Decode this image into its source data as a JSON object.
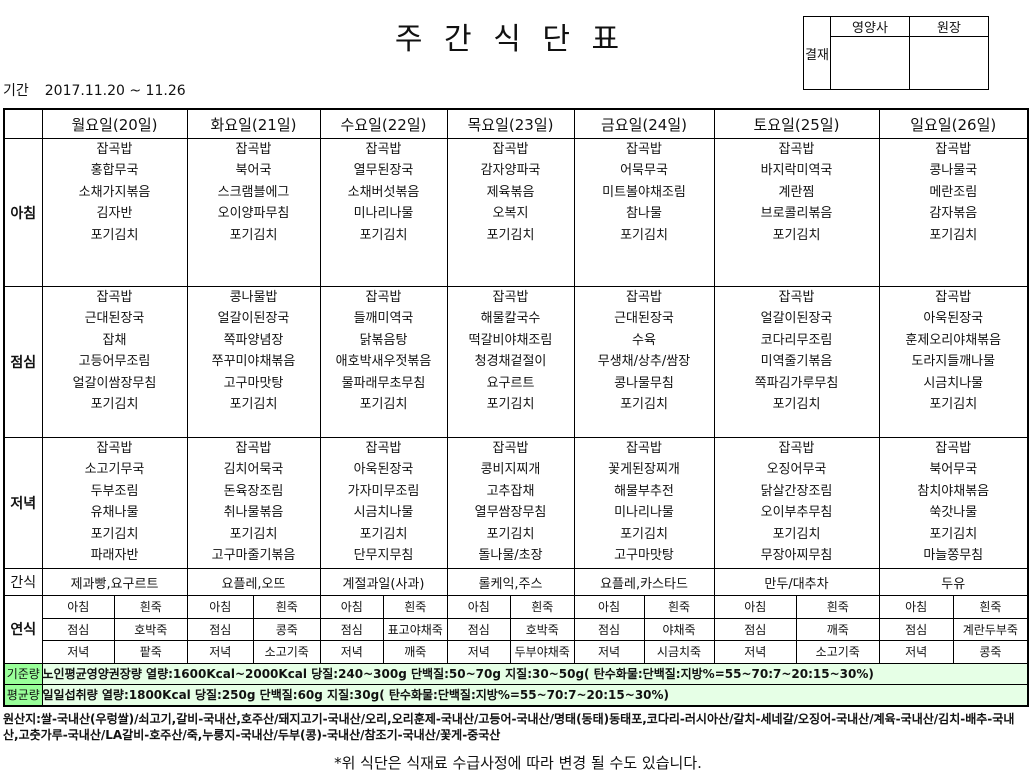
{
  "title": "주 간 식 단 표",
  "approval": {
    "label": "결재",
    "roles": [
      "영양사",
      "원장"
    ]
  },
  "period": {
    "label": "기간",
    "value": "2017.11.20 ~ 11.26"
  },
  "days": [
    "월요일(20일)",
    "화요일(21일)",
    "수요일(22일)",
    "목요일(23일)",
    "금요일(24일)",
    "토요일(25일)",
    "일요일(26일)"
  ],
  "meals": [
    {
      "label": "아침",
      "menus": [
        [
          "잡곡밥",
          "홍합무국",
          "소채가지볶음",
          "김자반",
          "포기김치"
        ],
        [
          "잡곡밥",
          "북어국",
          "스크램블에그",
          "오이양파무침",
          "포기김치"
        ],
        [
          "잡곡밥",
          "열무된장국",
          "소채버섯볶음",
          "미나리나물",
          "포기김치"
        ],
        [
          "잡곡밥",
          "감자양파국",
          "제육볶음",
          "오복지",
          "포기김치"
        ],
        [
          "잡곡밥",
          "어묵무국",
          "미트볼야채조림",
          "참나물",
          "포기김치"
        ],
        [
          "잡곡밥",
          "바지락미역국",
          "계란찜",
          "브로콜리볶음",
          "포기김치"
        ],
        [
          "잡곡밥",
          "콩나물국",
          "메란조림",
          "감자볶음",
          "포기김치"
        ]
      ]
    },
    {
      "label": "점심",
      "menus": [
        [
          "잡곡밥",
          "근대된장국",
          "잡채",
          "고등어무조림",
          "얼갈이쌈장무침",
          "포기김치"
        ],
        [
          "콩나물밥",
          "얼갈이된장국",
          "쪽파양념장",
          "쭈꾸미야채볶음",
          "고구마맛탕",
          "포기김치"
        ],
        [
          "잡곡밥",
          "들깨미역국",
          "닭볶음탕",
          "애호박새우젓볶음",
          "물파래무초무침",
          "포기김치"
        ],
        [
          "잡곡밥",
          "해물칼국수",
          "떡갈비야채조림",
          "청경채겉절이",
          "요구르트",
          "포기김치"
        ],
        [
          "잡곡밥",
          "근대된장국",
          "수육",
          "무생채/상추/쌈장",
          "콩나물무침",
          "포기김치"
        ],
        [
          "잡곡밥",
          "얼갈이된장국",
          "코다리무조림",
          "미역줄기볶음",
          "쪽파김가루무침",
          "포기김치"
        ],
        [
          "잡곡밥",
          "아욱된장국",
          "훈제오리야채볶음",
          "도라지들깨나물",
          "시금치나물",
          "포기김치"
        ]
      ]
    },
    {
      "label": "저녁",
      "menus": [
        [
          "잡곡밥",
          "소고기무국",
          "두부조림",
          "유채나물",
          "포기김치",
          "파래자반"
        ],
        [
          "잡곡밥",
          "김치어묵국",
          "돈육장조림",
          "취나물볶음",
          "포기김치",
          "고구마줄기볶음"
        ],
        [
          "잡곡밥",
          "아욱된장국",
          "가자미무조림",
          "시금치나물",
          "포기김치",
          "단무지무침"
        ],
        [
          "잡곡밥",
          "콩비지찌개",
          "고추잡채",
          "열무쌈장무침",
          "포기김치",
          "돌나물/초장"
        ],
        [
          "잡곡밥",
          "꽃게된장찌개",
          "해물부추전",
          "미나리나물",
          "포기김치",
          "고구마맛탕"
        ],
        [
          "잡곡밥",
          "오징어무국",
          "닭살간장조림",
          "오이부추무침",
          "포기김치",
          "무장아찌무침"
        ],
        [
          "잡곡밥",
          "북어무국",
          "참치야채볶음",
          "쑥갓나물",
          "포기김치",
          "마늘쫑무침"
        ]
      ]
    }
  ],
  "snack": {
    "label": "간식",
    "items": [
      "제과빵,요구르트",
      "요플레,오뜨",
      "계절과일(사과)",
      "롤케익,주스",
      "요플레,카스타드",
      "만두/대추차",
      "두유"
    ]
  },
  "soft": {
    "label": "연식",
    "days": [
      [
        [
          "아침",
          "흰죽"
        ],
        [
          "점심",
          "호박죽"
        ],
        [
          "저녁",
          "팥죽"
        ]
      ],
      [
        [
          "아침",
          "흰죽"
        ],
        [
          "점심",
          "콩죽"
        ],
        [
          "저녁",
          "소고기죽"
        ]
      ],
      [
        [
          "아침",
          "흰죽"
        ],
        [
          "점심",
          "표고야채죽"
        ],
        [
          "저녁",
          "깨죽"
        ]
      ],
      [
        [
          "아침",
          "흰죽"
        ],
        [
          "점심",
          "호박죽"
        ],
        [
          "저녁",
          "두부야채죽"
        ]
      ],
      [
        [
          "아침",
          "흰죽"
        ],
        [
          "점심",
          "야채죽"
        ],
        [
          "저녁",
          "시금치죽"
        ]
      ],
      [
        [
          "아침",
          "흰죽"
        ],
        [
          "점심",
          "깨죽"
        ],
        [
          "저녁",
          "소고기죽"
        ]
      ],
      [
        [
          "아침",
          "흰죽"
        ],
        [
          "점심",
          "계란두부죽"
        ],
        [
          "저녁",
          "콩죽"
        ]
      ]
    ]
  },
  "standard": {
    "label": "기준량",
    "text": "노인평균영양권장량 열량:1600Kcal~2000Kcal 당질:240~300g 단백질:50~70g 지질:30~50g( 탄수화물:단백질:지방%=55~70:7~20:15~30%)"
  },
  "average": {
    "label": "평균량",
    "text": "일일섭취량 열량:1800Kcal 당질:250g 단백질:60g 지질:30g( 탄수화물:단백질:지방%=55~70:7~20:15~30%)"
  },
  "origin": "원산지:쌀-국내산(우렁쌀)/쇠고기,갈비-국내산,호주산/돼지고기-국내산/오리,오리훈제-국내산/고등어-국내산/명태(동태)동태포,코다리-러시아산/갈치-세네갈/오징어-국내산/계육-국내산/김치-배추-국내산,고춧가루-국내산/LA갈비-호주산/죽,누룽지-국내산/두부(콩)-국내산/참조기-국내산/꽃게-중국산",
  "note": "*위 식단은 식재료 수급사정에 따라 변경 될 수도 있습니다."
}
